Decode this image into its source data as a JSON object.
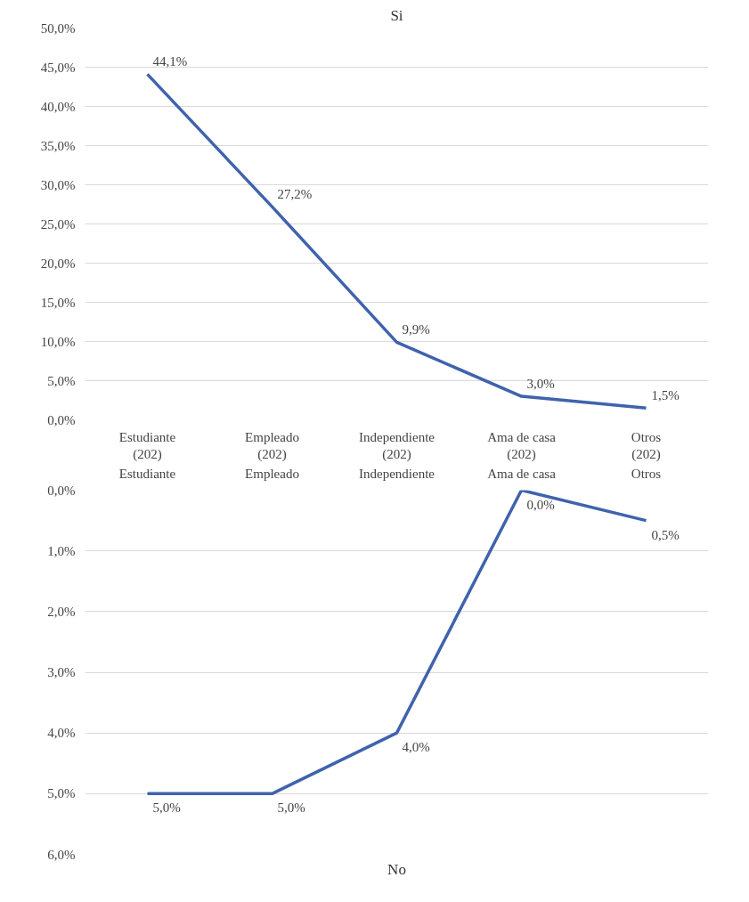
{
  "chart_data": [
    {
      "type": "line",
      "title": "Si",
      "categories": [
        "Estudiante\n(202)",
        "Empleado\n(202)",
        "Independiente\n(202)",
        "Ama de casa\n(202)",
        "Otros\n(202)"
      ],
      "series": [
        {
          "color": "#3f63ad",
          "values": [
            44.1,
            27.2,
            9.9,
            3.0,
            1.5
          ],
          "value_labels": [
            "44,1%",
            "27,2%",
            "9,9%",
            "3,0%",
            "1,5%"
          ]
        }
      ],
      "ylim": [
        0,
        50
      ],
      "yticks": [
        {
          "value": 0,
          "label": "0,0%"
        },
        {
          "value": 5,
          "label": "5,0%"
        },
        {
          "value": 10,
          "label": "10,0%"
        },
        {
          "value": 15,
          "label": "15,0%"
        },
        {
          "value": 20,
          "label": "20,0%"
        },
        {
          "value": 25,
          "label": "25,0%"
        },
        {
          "value": 30,
          "label": "30,0%"
        },
        {
          "value": 35,
          "label": "35,0%"
        },
        {
          "value": 40,
          "label": "40,0%"
        },
        {
          "value": 45,
          "label": "45,0%"
        },
        {
          "value": 50,
          "label": "50,0%"
        }
      ],
      "grid": "y"
    },
    {
      "type": "line",
      "title": "No",
      "categories": [
        "Estudiante",
        "Empleado",
        "Independiente",
        "Ama de casa",
        "Otros"
      ],
      "series": [
        {
          "color": "#3f63ad",
          "values": [
            5.0,
            5.0,
            4.0,
            0.0,
            0.5
          ],
          "value_labels": [
            "5,0%",
            "5,0%",
            "4,0%",
            "0,0%",
            "0,5%"
          ]
        }
      ],
      "ylim": [
        6,
        0
      ],
      "yticks": [
        {
          "value": 0,
          "label": "0,0%"
        },
        {
          "value": 1,
          "label": "1,0%"
        },
        {
          "value": 2,
          "label": "2,0%"
        },
        {
          "value": 3,
          "label": "3,0%"
        },
        {
          "value": 4,
          "label": "4,0%"
        },
        {
          "value": 5,
          "label": "5,0%"
        },
        {
          "value": 6,
          "label": "6,0%"
        }
      ],
      "grid": "y"
    }
  ]
}
